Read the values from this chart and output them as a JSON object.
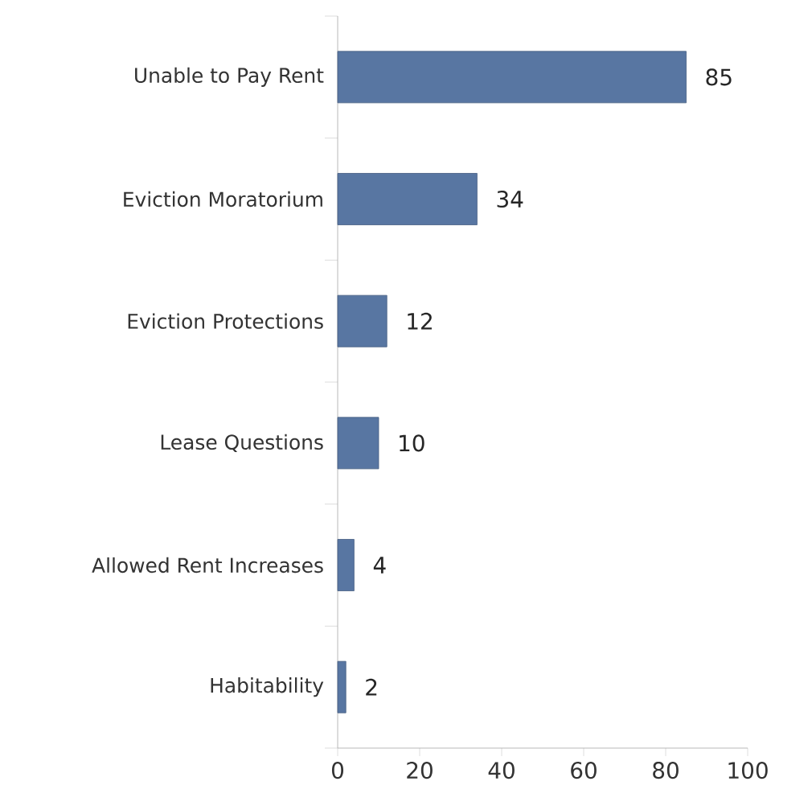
{
  "chart_data": {
    "type": "bar",
    "orientation": "horizontal",
    "categories": [
      "Unable to Pay Rent",
      "Eviction Moratorium",
      "Eviction Protections",
      "Lease Questions",
      "Allowed Rent Increases",
      "Habitability"
    ],
    "values": [
      85,
      34,
      12,
      10,
      4,
      2
    ],
    "color": "#5876a2",
    "xlim": [
      0,
      100
    ],
    "xticks": [
      0,
      20,
      40,
      60,
      80,
      100
    ],
    "data_labels": true
  }
}
